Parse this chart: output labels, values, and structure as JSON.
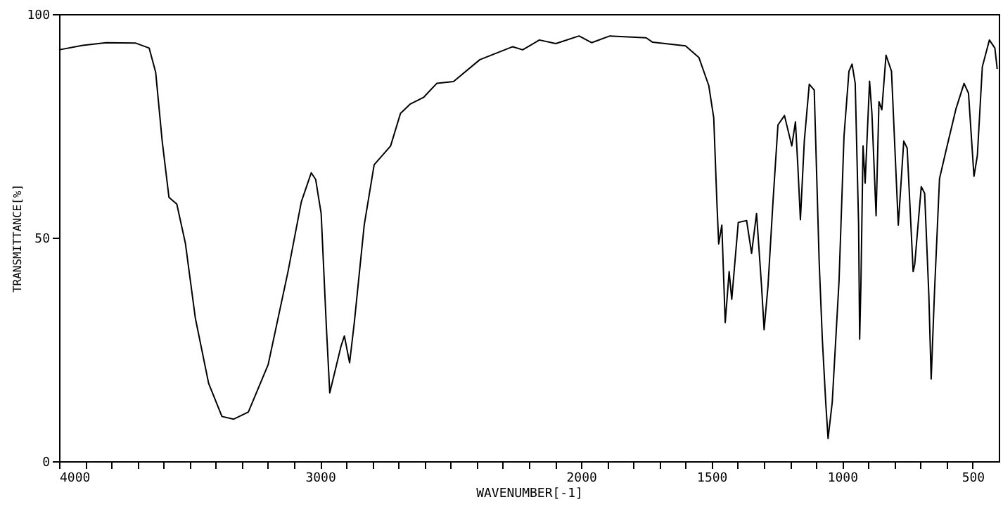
{
  "chart_data": {
    "type": "line",
    "xlabel": "WAVENUMBER[-1]",
    "ylabel": "TRANSMITTANCE[%]",
    "xlim": [
      4000,
      400
    ],
    "ylim": [
      0,
      100
    ],
    "xticks": [
      4000,
      {
        "value": 3900,
        "label": null
      },
      {
        "value": 3800,
        "label": null
      },
      {
        "value": 3700,
        "label": null
      },
      {
        "value": 3600,
        "label": null
      },
      {
        "value": 3500,
        "label": null
      },
      {
        "value": 3400,
        "label": null
      },
      {
        "value": 3300,
        "label": null
      },
      {
        "value": 3200,
        "label": null
      },
      {
        "value": 3100,
        "label": null
      },
      3000,
      {
        "value": 2900,
        "label": null
      },
      {
        "value": 2800,
        "label": null
      },
      {
        "value": 2700,
        "label": null
      },
      {
        "value": 2600,
        "label": null
      },
      {
        "value": 2500,
        "label": null
      },
      {
        "value": 2400,
        "label": null
      },
      {
        "value": 2300,
        "label": null
      },
      {
        "value": 2200,
        "label": null
      },
      {
        "value": 2100,
        "label": null
      },
      2000,
      {
        "value": 1900,
        "label": null
      },
      {
        "value": 1800,
        "label": null
      },
      {
        "value": 1700,
        "label": null
      },
      {
        "value": 1600,
        "label": null
      },
      1500,
      {
        "value": 1400,
        "label": null
      },
      {
        "value": 1300,
        "label": null
      },
      {
        "value": 1200,
        "label": null
      },
      {
        "value": 1100,
        "label": null
      },
      1000,
      {
        "value": 900,
        "label": null
      },
      {
        "value": 800,
        "label": null
      },
      {
        "value": 700,
        "label": null
      },
      {
        "value": 600,
        "label": null
      },
      500
    ],
    "yticks": [
      0,
      50,
      100
    ],
    "series": [
      {
        "color": "#000000",
        "x": [
          4000,
          3909,
          3820,
          3706,
          3655,
          3630,
          3605,
          3579,
          3549,
          3516,
          3478,
          3427,
          3376,
          3331,
          3275,
          3199,
          3123,
          3072,
          3034,
          3017,
          2996,
          2976,
          2963,
          2920,
          2907,
          2887,
          2869,
          2831,
          2793,
          2730,
          2692,
          2654,
          2603,
          2553,
          2489,
          2388,
          2262,
          2224,
          2160,
          2097,
          2008,
          1960,
          1890,
          1751,
          1726,
          1600,
          1549,
          1511,
          1492,
          1480,
          1473,
          1461,
          1448,
          1433,
          1423,
          1398,
          1366,
          1347,
          1328,
          1309,
          1299,
          1284,
          1265,
          1246,
          1221,
          1193,
          1179,
          1170,
          1160,
          1145,
          1126,
          1107,
          1088,
          1076,
          1063,
          1054,
          1038,
          1012,
          993,
          974,
          962,
          950,
          937,
          933,
          928,
          920,
          912,
          895,
          886,
          870,
          859,
          848,
          832,
          811,
          785,
          764,
          751,
          728,
          722,
          697,
          684,
          668,
          659,
          646,
          627,
          602,
          564,
          533,
          516,
          495,
          482,
          463,
          436,
          415,
          406
        ],
        "values": [
          92,
          93,
          93.6,
          93.5,
          92.4,
          87,
          71.6,
          59,
          57.5,
          48.7,
          32,
          17.4,
          10,
          9.4,
          11,
          21.6,
          42.4,
          58,
          64.5,
          63,
          55.4,
          30,
          15.3,
          25.7,
          28,
          22,
          31,
          52.8,
          66.3,
          70.5,
          77.8,
          79.9,
          81.4,
          84.5,
          84.9,
          89.8,
          92.7,
          92,
          94.2,
          93.4,
          95.1,
          93.6,
          95.1,
          94.7,
          93.7,
          92.9,
          90.3,
          84,
          76.8,
          58,
          48.6,
          52.8,
          31,
          42.4,
          36.2,
          53.4,
          53.8,
          46.5,
          55.4,
          39.3,
          29.4,
          39.3,
          58,
          75.2,
          77.3,
          70.5,
          75.9,
          66.3,
          54,
          71.6,
          84.3,
          83,
          44.5,
          27.3,
          13.2,
          5.1,
          13.2,
          40.3,
          72.6,
          87.2,
          88.8,
          84.5,
          52.8,
          27.3,
          40,
          70.5,
          62.2,
          85,
          77.8,
          54.9,
          80.4,
          78.6,
          90.8,
          87.2,
          52.8,
          71.6,
          70,
          42.4,
          44,
          61.4,
          59.9,
          37.2,
          18.4,
          38.2,
          63.2,
          69.5,
          78.8,
          84.5,
          82.3,
          63.7,
          68.4,
          88.2,
          94.2,
          92.4,
          87.7
        ]
      }
    ]
  }
}
